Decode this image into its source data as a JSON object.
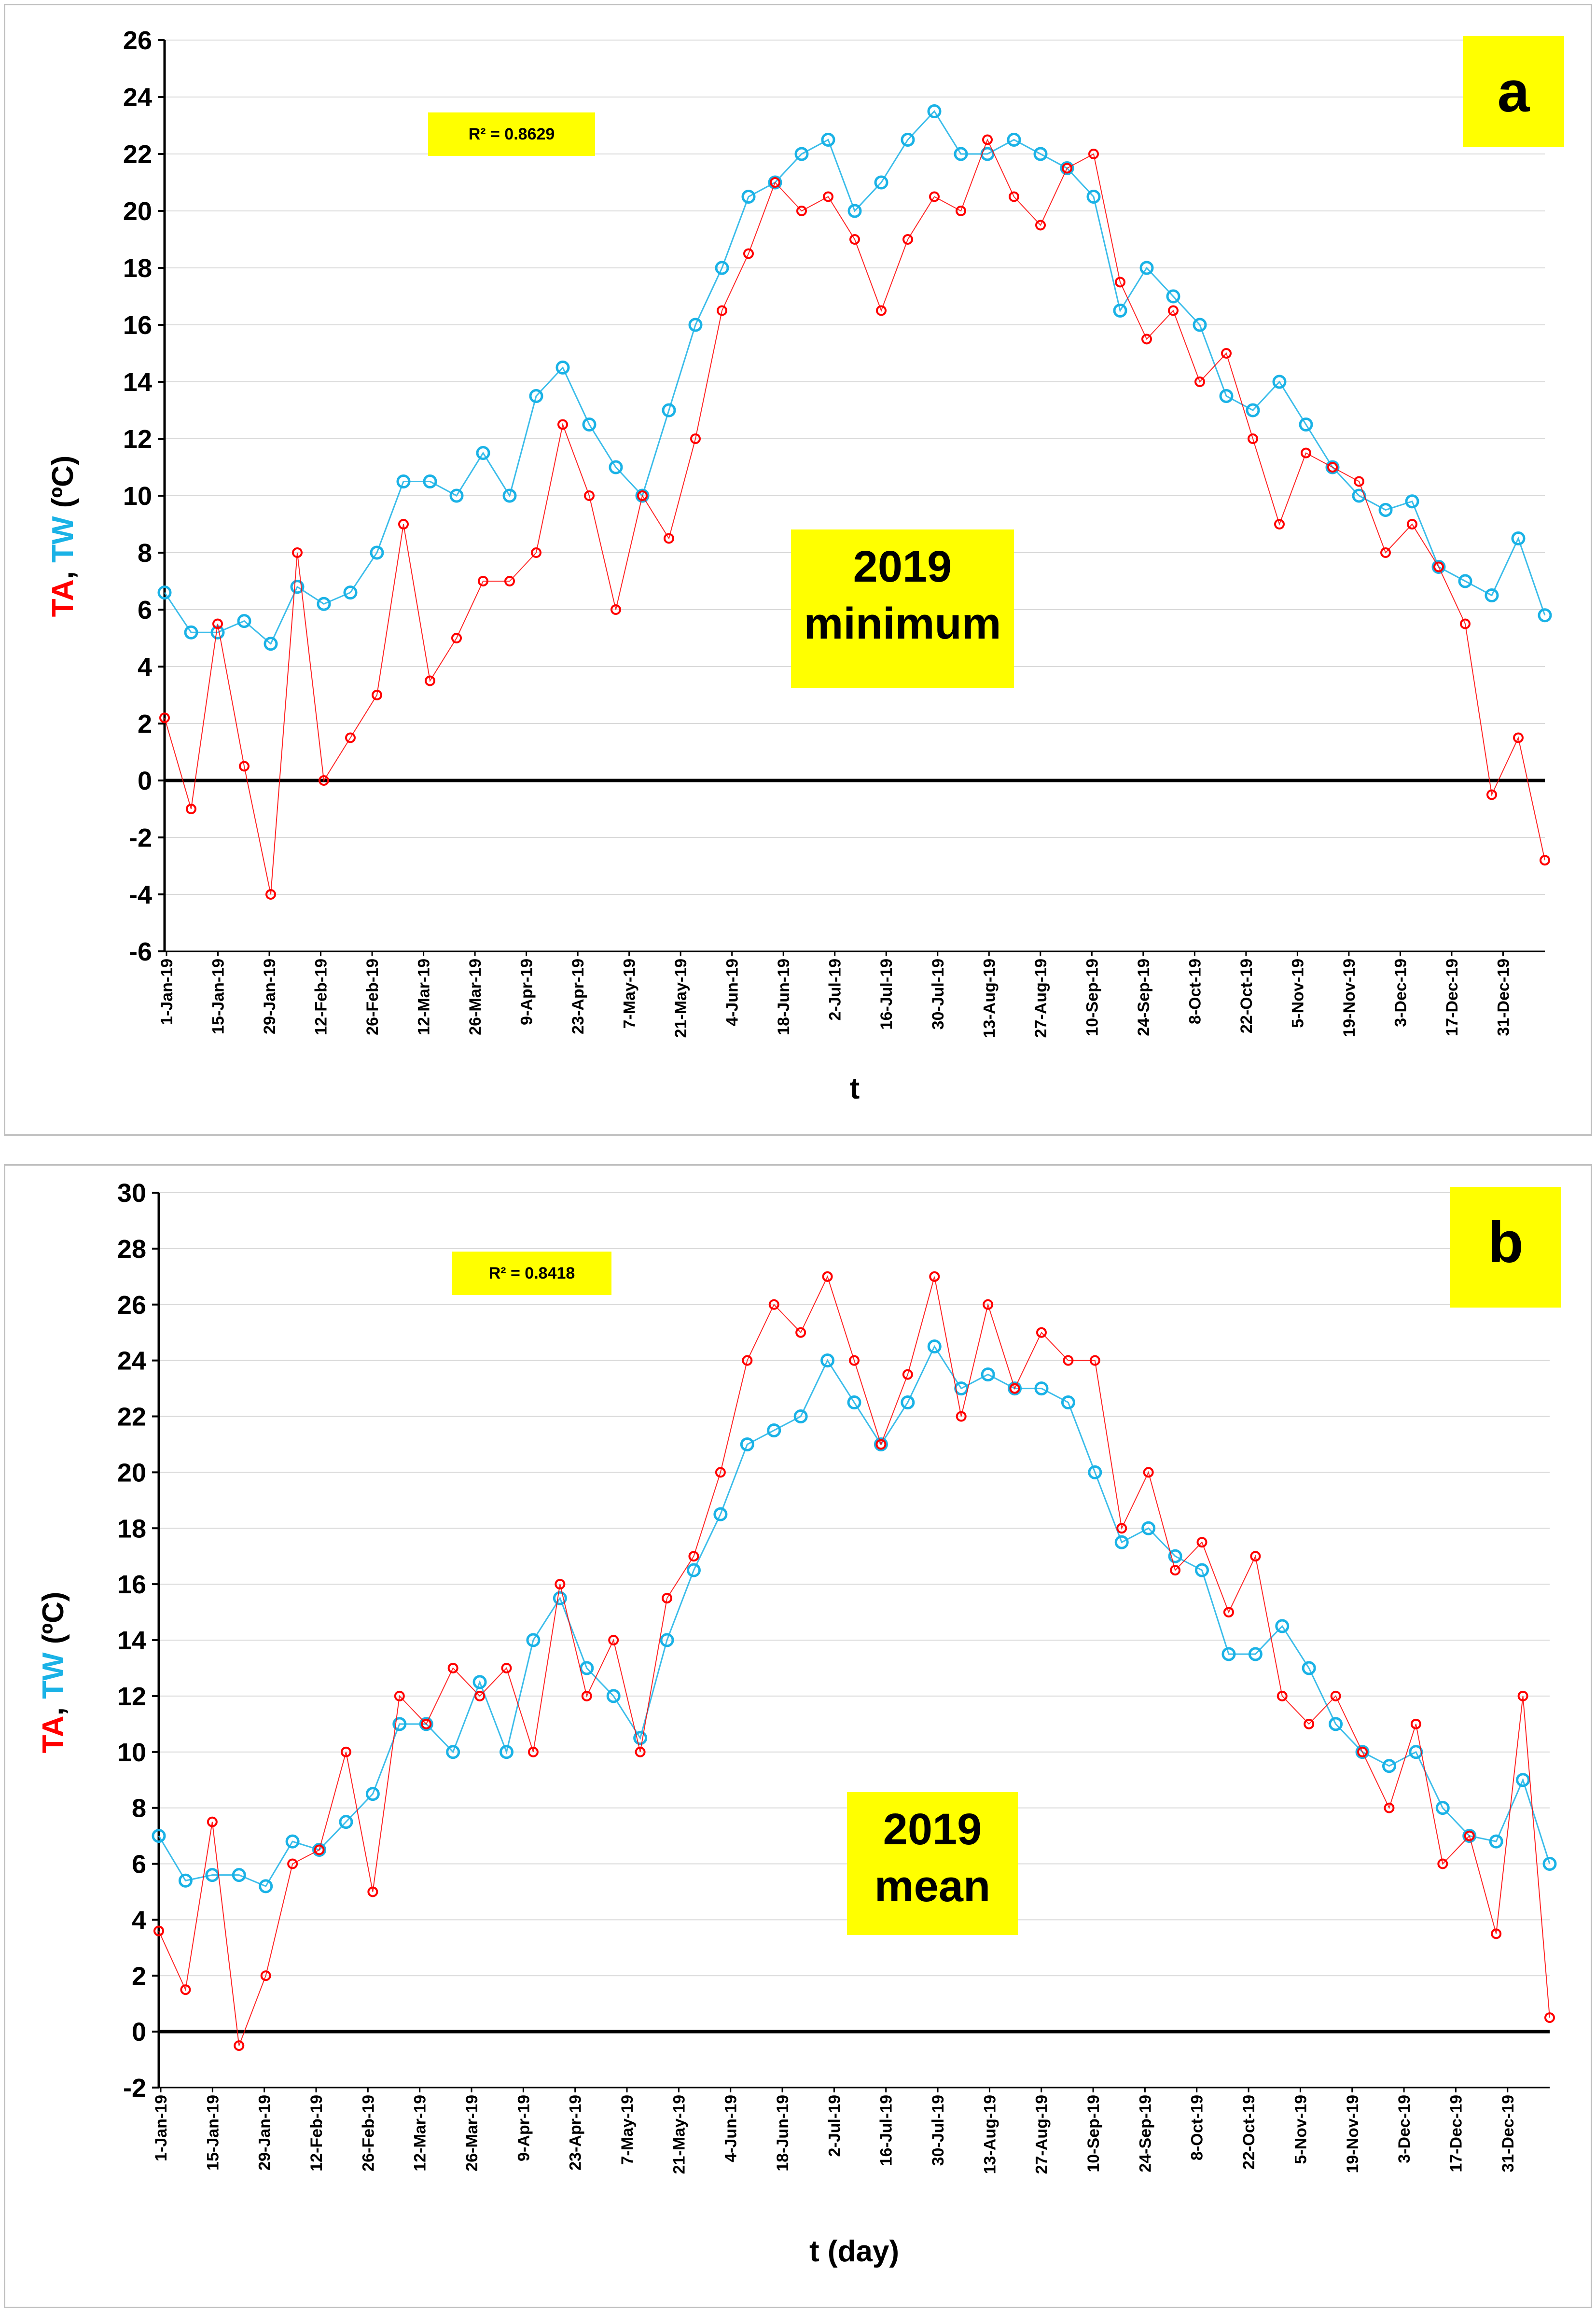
{
  "charts": [
    {
      "panel_letter": "a",
      "r2_label": "R² = 0.8629",
      "year_label": "2019",
      "stat_label": "minimum",
      "ylabel_parts": [
        "TA",
        ", ",
        "TW",
        " (ºC)"
      ],
      "xlabel": "t",
      "yticks": [
        "-6",
        "-4",
        "-2",
        "0",
        "2",
        "4",
        "6",
        "8",
        "10",
        "12",
        "14",
        "16",
        "18",
        "20",
        "22",
        "24",
        "26"
      ],
      "xticks": [
        "1-Jan-19",
        "15-Jan-19",
        "29-Jan-19",
        "12-Feb-19",
        "26-Feb-19",
        "12-Mar-19",
        "26-Mar-19",
        "9-Apr-19",
        "23-Apr-19",
        "7-May-19",
        "21-May-19",
        "4-Jun-19",
        "18-Jun-19",
        "2-Jul-19",
        "16-Jul-19",
        "30-Jul-19",
        "13-Aug-19",
        "27-Aug-19",
        "10-Sep-19",
        "24-Sep-19",
        "8-Oct-19",
        "22-Oct-19",
        "5-Nov-19",
        "19-Nov-19",
        "3-Dec-19",
        "17-Dec-19",
        "31-Dec-19"
      ]
    },
    {
      "panel_letter": "b",
      "r2_label": "R² = 0.8418",
      "year_label": "2019",
      "stat_label": "mean",
      "ylabel_parts": [
        "TA",
        ", ",
        "TW",
        " (ºC)"
      ],
      "xlabel": "t (day)",
      "yticks": [
        "-2",
        "0",
        "2",
        "4",
        "6",
        "8",
        "10",
        "12",
        "14",
        "16",
        "18",
        "20",
        "22",
        "24",
        "26",
        "28",
        "30"
      ],
      "xticks": [
        "1-Jan-19",
        "15-Jan-19",
        "29-Jan-19",
        "12-Feb-19",
        "26-Feb-19",
        "12-Mar-19",
        "26-Mar-19",
        "9-Apr-19",
        "23-Apr-19",
        "7-May-19",
        "21-May-19",
        "4-Jun-19",
        "18-Jun-19",
        "2-Jul-19",
        "16-Jul-19",
        "30-Jul-19",
        "13-Aug-19",
        "27-Aug-19",
        "10-Sep-19",
        "24-Sep-19",
        "8-Oct-19",
        "22-Oct-19",
        "5-Nov-19",
        "19-Nov-19",
        "3-Dec-19",
        "17-Dec-19",
        "31-Dec-19"
      ]
    }
  ],
  "colors": {
    "TA": "#ff0000",
    "TW": "#1ab2e6",
    "tag": "#ffff00"
  },
  "chart_data": [
    {
      "type": "line",
      "title": "2019 minimum",
      "xlabel": "t",
      "ylabel": "TA, TW (ºC)",
      "ylim": [
        -6,
        26
      ],
      "xlim": [
        1,
        365
      ],
      "x_unit": "day of year (1 = 1-Jan-19)",
      "series": [
        {
          "name": "TA",
          "color": "#ff0000",
          "x": [
            1,
            8,
            15,
            22,
            29,
            36,
            43,
            50,
            57,
            64,
            71,
            78,
            85,
            92,
            99,
            106,
            113,
            120,
            127,
            134,
            141,
            148,
            155,
            162,
            169,
            176,
            183,
            190,
            197,
            204,
            211,
            218,
            225,
            232,
            239,
            246,
            253,
            260,
            267,
            274,
            281,
            288,
            295,
            302,
            309,
            316,
            323,
            330,
            337,
            344,
            351,
            358,
            365
          ],
          "values": [
            2.2,
            -1,
            5.5,
            0.5,
            -4,
            8,
            0,
            1.5,
            3,
            9,
            3.5,
            5,
            7,
            7,
            8,
            12.5,
            10,
            6,
            10,
            8.5,
            12,
            16.5,
            18.5,
            21,
            20,
            20.5,
            19,
            16.5,
            19,
            20.5,
            20,
            22.5,
            20.5,
            19.5,
            21.5,
            22,
            17.5,
            15.5,
            16.5,
            14,
            15,
            12,
            9,
            11.5,
            11,
            10.5,
            8,
            9,
            7.5,
            5.5,
            -0.5,
            1.5,
            -2.8
          ]
        },
        {
          "name": "TW",
          "color": "#1ab2e6",
          "x": [
            1,
            8,
            15,
            22,
            29,
            36,
            43,
            50,
            57,
            64,
            71,
            78,
            85,
            92,
            99,
            106,
            113,
            120,
            127,
            134,
            141,
            148,
            155,
            162,
            169,
            176,
            183,
            190,
            197,
            204,
            211,
            218,
            225,
            232,
            239,
            246,
            253,
            260,
            267,
            274,
            281,
            288,
            295,
            302,
            309,
            316,
            323,
            330,
            337,
            344,
            351,
            358,
            365
          ],
          "values": [
            6.6,
            5.2,
            5.2,
            5.6,
            4.8,
            6.8,
            6.2,
            6.6,
            8,
            10.5,
            10.5,
            10,
            11.5,
            10,
            13.5,
            14.5,
            12.5,
            11,
            10,
            13,
            16,
            18,
            20.5,
            21,
            22,
            22.5,
            20,
            21,
            22.5,
            23.5,
            22,
            22,
            22.5,
            22,
            21.5,
            20.5,
            16.5,
            18,
            17,
            16,
            13.5,
            13,
            14,
            12.5,
            11,
            10,
            9.5,
            9.8,
            7.5,
            7,
            6.5,
            8.5,
            5.8
          ]
        }
      ]
    },
    {
      "type": "line",
      "title": "2019 mean",
      "xlabel": "t (day)",
      "ylabel": "TA, TW (ºC)",
      "ylim": [
        -2,
        30
      ],
      "xlim": [
        1,
        365
      ],
      "x_unit": "day of year (1 = 1-Jan-19)",
      "series": [
        {
          "name": "TA",
          "color": "#ff0000",
          "x": [
            1,
            8,
            15,
            22,
            29,
            36,
            43,
            50,
            57,
            64,
            71,
            78,
            85,
            92,
            99,
            106,
            113,
            120,
            127,
            134,
            141,
            148,
            155,
            162,
            169,
            176,
            183,
            190,
            197,
            204,
            211,
            218,
            225,
            232,
            239,
            246,
            253,
            260,
            267,
            274,
            281,
            288,
            295,
            302,
            309,
            316,
            323,
            330,
            337,
            344,
            351,
            358,
            365
          ],
          "values": [
            3.6,
            1.5,
            7.5,
            -0.5,
            2,
            6,
            6.5,
            10,
            5,
            12,
            11,
            13,
            12,
            13,
            10,
            16,
            12,
            14,
            10,
            15.5,
            17,
            20,
            24,
            26,
            25,
            27,
            24,
            21,
            23.5,
            27,
            22,
            26,
            23,
            25,
            24,
            24,
            18,
            20,
            16.5,
            17.5,
            15,
            17,
            12,
            11,
            12,
            10,
            8,
            11,
            6,
            7,
            3.5,
            12,
            0.5
          ]
        },
        {
          "name": "TW",
          "color": "#1ab2e6",
          "x": [
            1,
            8,
            15,
            22,
            29,
            36,
            43,
            50,
            57,
            64,
            71,
            78,
            85,
            92,
            99,
            106,
            113,
            120,
            127,
            134,
            141,
            148,
            155,
            162,
            169,
            176,
            183,
            190,
            197,
            204,
            211,
            218,
            225,
            232,
            239,
            246,
            253,
            260,
            267,
            274,
            281,
            288,
            295,
            302,
            309,
            316,
            323,
            330,
            337,
            344,
            351,
            358,
            365
          ],
          "values": [
            7,
            5.4,
            5.6,
            5.6,
            5.2,
            6.8,
            6.5,
            7.5,
            8.5,
            11,
            11,
            10,
            12.5,
            10,
            14,
            15.5,
            13,
            12,
            10.5,
            14,
            16.5,
            18.5,
            21,
            21.5,
            22,
            24,
            22.5,
            21,
            22.5,
            24.5,
            23,
            23.5,
            23,
            23,
            22.5,
            20,
            17.5,
            18,
            17,
            16.5,
            13.5,
            13.5,
            14.5,
            13,
            11,
            10,
            9.5,
            10,
            8,
            7,
            6.8,
            9,
            6
          ]
        }
      ]
    }
  ]
}
